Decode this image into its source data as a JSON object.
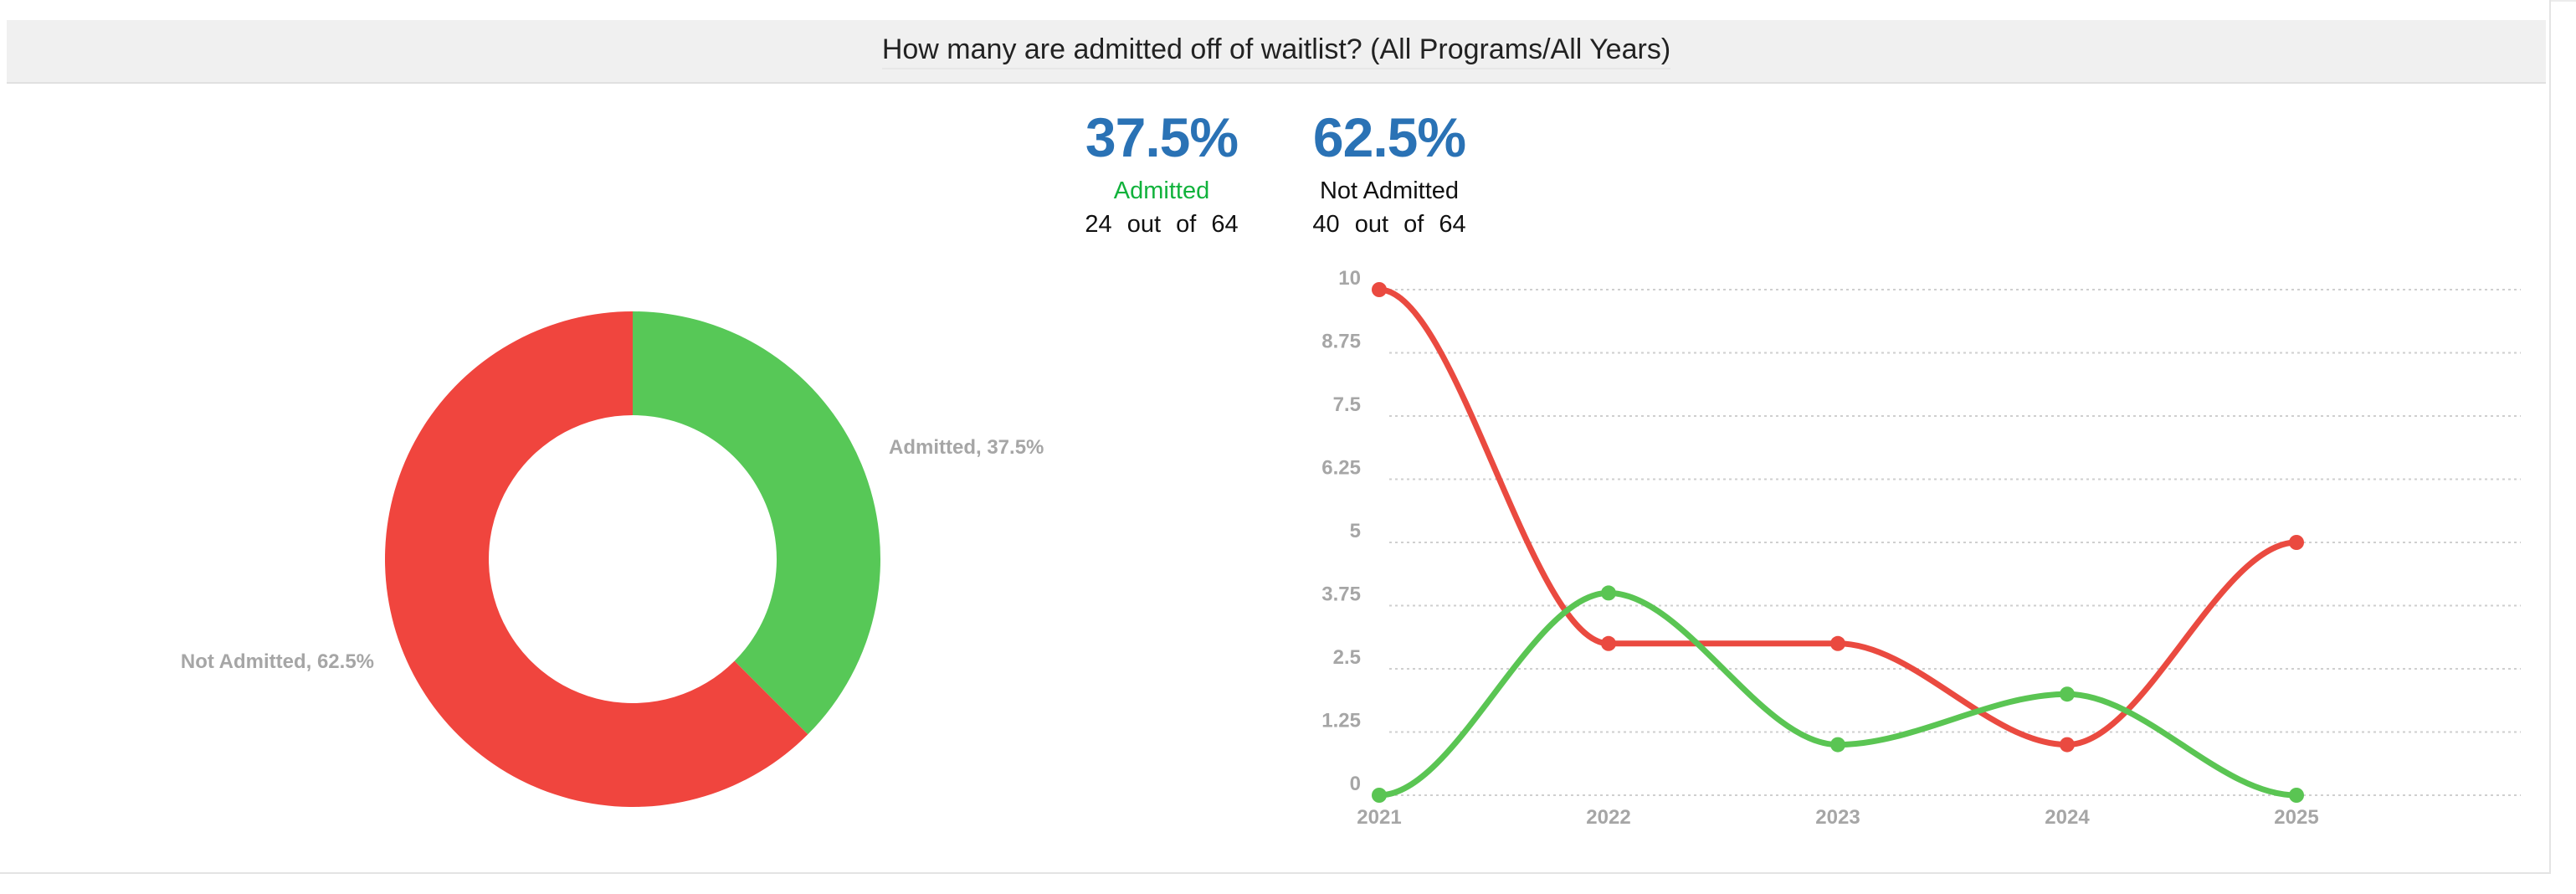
{
  "title": "How many are admitted off of waitlist? (All Programs/All Years)",
  "summary": {
    "admitted": {
      "percent": "37.5%",
      "label": "Admitted",
      "count_text": "24 out of 64",
      "color": "#11b23c"
    },
    "not_admitted": {
      "percent": "62.5%",
      "label": "Not Admitted",
      "count_text": "40 out of 64",
      "color": "#111111"
    }
  },
  "chart_data": [
    {
      "type": "pie",
      "donut": true,
      "slices": [
        {
          "label": "Admitted",
          "value": 37.5,
          "data_label": "Admitted, 37.5%",
          "color": "#57c857"
        },
        {
          "label": "Not Admitted",
          "value": 62.5,
          "data_label": "Not Admitted, 62.5%",
          "color": "#f0453e"
        }
      ]
    },
    {
      "type": "line",
      "smooth": true,
      "categories": [
        "2021",
        "2022",
        "2023",
        "2024",
        "2025"
      ],
      "series": [
        {
          "values": [
            10,
            3,
            3,
            1,
            5
          ],
          "color": "#ea4a40"
        },
        {
          "values": [
            0,
            4,
            1,
            2,
            0
          ],
          "color": "#5ac553"
        }
      ],
      "ylim": [
        0,
        10
      ],
      "yticks": [
        "0",
        "1.25",
        "2.5",
        "3.75",
        "5",
        "6.25",
        "7.5",
        "8.75",
        "10"
      ],
      "grid": true
    }
  ]
}
